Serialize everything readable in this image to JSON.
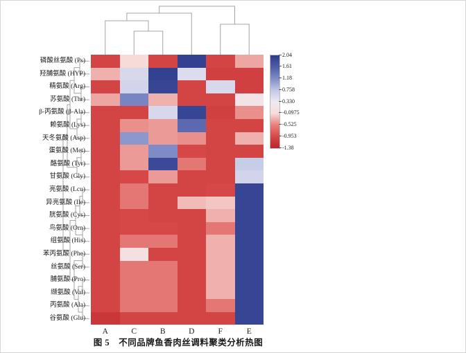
{
  "caption": {
    "prefix": "图 5",
    "title": "不同品牌鱼香肉丝调料聚类分析热图"
  },
  "chart_data": {
    "type": "heatmap",
    "title": "不同品牌鱼香肉丝调料聚类分析热图",
    "columns": [
      "A",
      "C",
      "B",
      "D",
      "F",
      "E"
    ],
    "rows": [
      "磷酸丝氨酸 (Ps)",
      "羟脯氨酸 (HYP)",
      "精氨酸 (Arg)",
      "苏氨酸 (Thr)",
      "β-丙氨酸 (β-Ala)",
      "赖氨酸 (Lys)",
      "天冬氨酸 (Asp)",
      "蛋氨酸 (Met)",
      "酪氨酸 (Tyr)",
      "甘氨酸 (Gly)",
      "亮氨酸 (Lcu)",
      "异亮氨酸 (Ile)",
      "胱氨酸 (Cys)",
      "鸟氨酸 (Orn)",
      "组氨酸 (His)",
      "苯丙氨酸 (Phe)",
      "丝氨酸 (Ser)",
      "脯氨酸 (Pro)",
      "缬氨酸 (Val)",
      "丙氨酸 (Ala)",
      "谷氨酸 (Glu)"
    ],
    "values": [
      [
        -1.0,
        -0.1,
        -1.0,
        1.95,
        -1.0,
        -0.35
      ],
      [
        -0.3,
        0.55,
        1.95,
        0.5,
        -1.05,
        -1.05
      ],
      [
        -1.0,
        0.6,
        1.9,
        -1.0,
        0.55,
        -1.05
      ],
      [
        -0.35,
        1.25,
        -0.3,
        -1.0,
        -1.0,
        0.1
      ],
      [
        -1.0,
        -1.0,
        0.55,
        1.9,
        -1.05,
        -0.45
      ],
      [
        -1.0,
        -0.45,
        -0.4,
        1.5,
        -1.0,
        -1.0
      ],
      [
        -1.0,
        1.1,
        -0.4,
        -0.45,
        -1.0,
        -0.3
      ],
      [
        -1.0,
        -0.4,
        1.2,
        -0.95,
        -1.0,
        -1.0
      ],
      [
        -1.0,
        -0.4,
        1.85,
        -0.6,
        -1.0,
        0.7
      ],
      [
        -1.0,
        -0.95,
        -0.4,
        -1.0,
        -1.0,
        0.6
      ],
      [
        -1.0,
        -0.6,
        -1.0,
        -1.0,
        -0.95,
        1.9
      ],
      [
        -1.0,
        -0.6,
        -1.0,
        -0.25,
        -0.2,
        1.9
      ],
      [
        -1.0,
        -0.95,
        -1.0,
        -1.0,
        -0.3,
        1.9
      ],
      [
        -1.0,
        -0.95,
        -0.95,
        -1.0,
        -0.6,
        1.9
      ],
      [
        -1.0,
        -0.6,
        -0.6,
        -1.0,
        -0.3,
        1.9
      ],
      [
        -1.0,
        0.0,
        -1.0,
        -1.0,
        -0.3,
        1.9
      ],
      [
        -1.0,
        -0.6,
        -0.6,
        -1.0,
        -0.3,
        1.9
      ],
      [
        -1.0,
        -0.6,
        -0.6,
        -1.0,
        -0.3,
        1.9
      ],
      [
        -1.0,
        -0.6,
        -0.6,
        -1.0,
        -0.3,
        1.9
      ],
      [
        -1.0,
        -0.6,
        -0.6,
        -1.0,
        -0.6,
        1.9
      ],
      [
        -1.15,
        -1.0,
        -1.0,
        -1.0,
        -1.0,
        1.9
      ]
    ],
    "vmin": -1.38,
    "vmax": 2.04,
    "legend_ticks": [
      "2.04",
      "1.61",
      "1.18",
      "0.758",
      "0.330",
      "-0.0975",
      "-0.525",
      "-0.953",
      "-1.38"
    ],
    "colormap_stops": [
      [
        -1.38,
        [
          186,
          36,
          43
        ]
      ],
      [
        -0.953,
        [
          214,
          72,
          71
        ]
      ],
      [
        -0.525,
        [
          231,
          128,
          124
        ]
      ],
      [
        -0.0975,
        [
          246,
          221,
          218
        ]
      ],
      [
        0.33,
        [
          238,
          234,
          244
        ]
      ],
      [
        0.758,
        [
          193,
          199,
          229
        ]
      ],
      [
        1.18,
        [
          128,
          141,
          199
        ]
      ],
      [
        1.61,
        [
          79,
          93,
          169
        ]
      ],
      [
        2.04,
        [
          44,
          58,
          139
        ]
      ]
    ],
    "legend_position": "right",
    "row_dendrogram": "left",
    "column_dendrogram": "top",
    "grid": false
  }
}
